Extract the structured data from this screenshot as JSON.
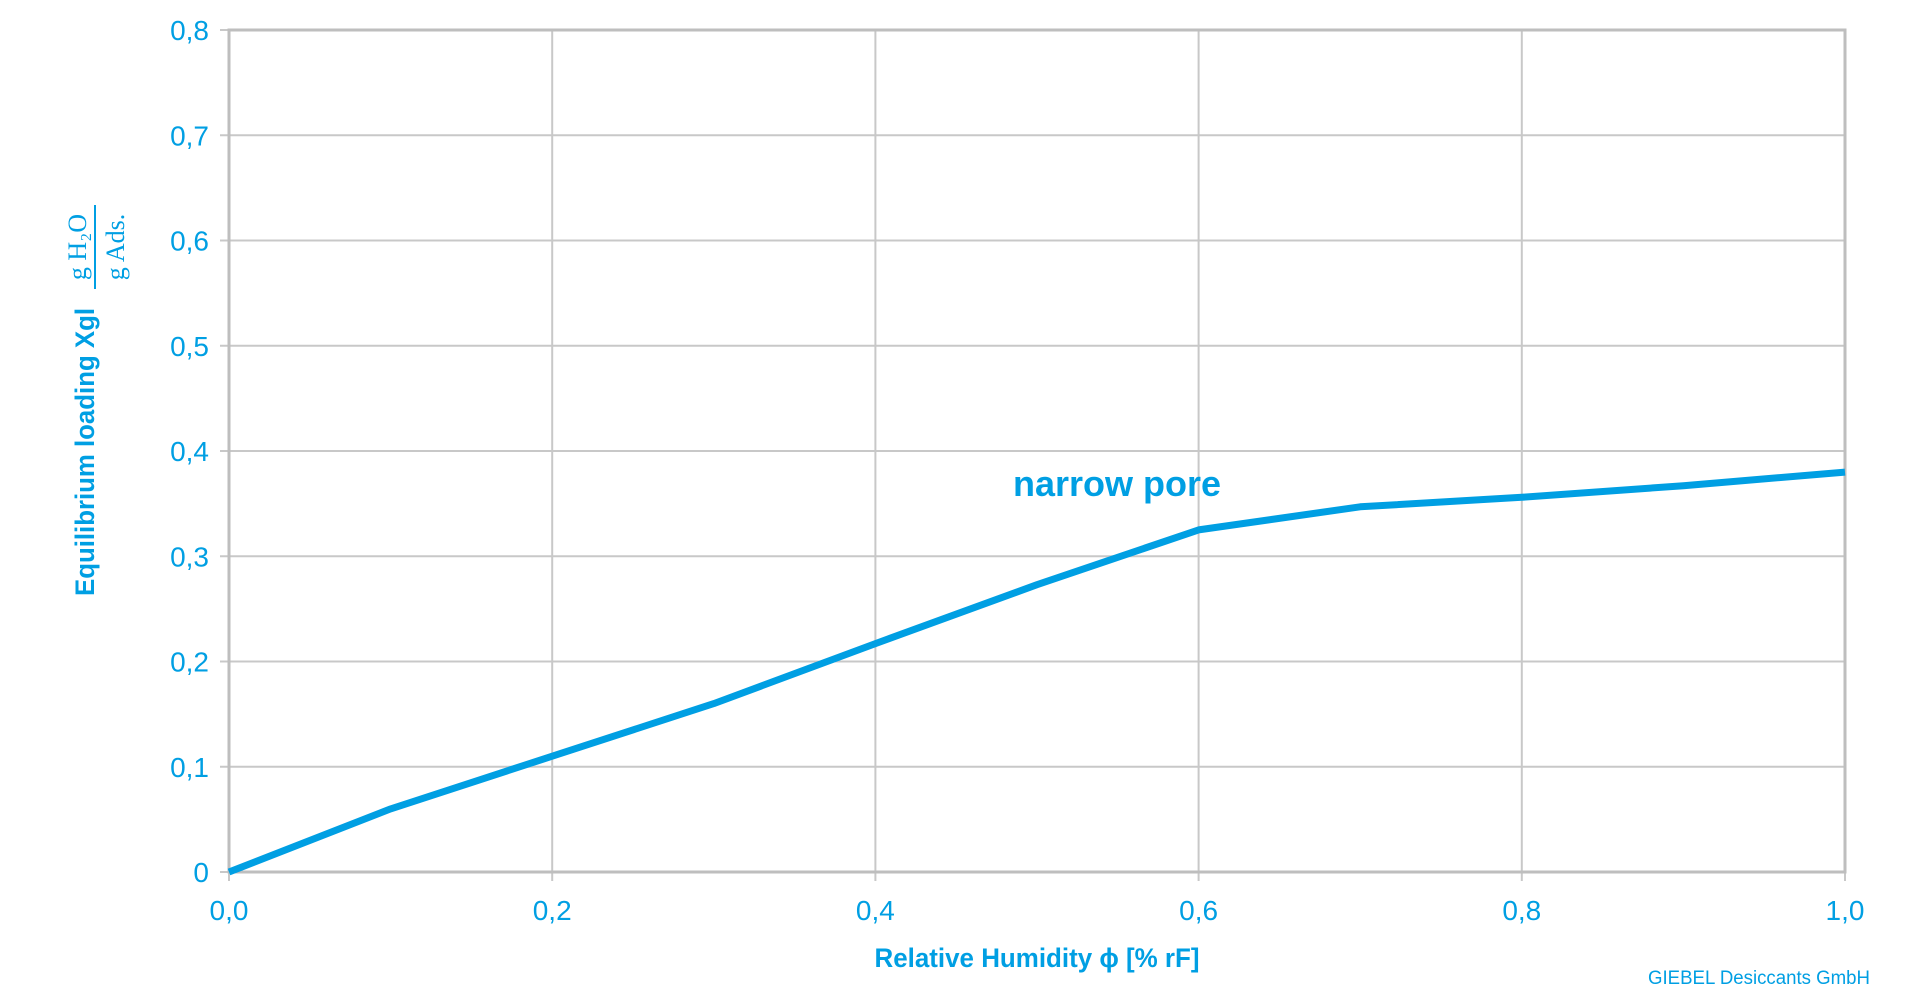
{
  "chart_data": {
    "type": "line",
    "title": "",
    "xlabel": "Relative Humidity ϕ [% rF]",
    "ylabel": "Equilibrium loading Xgl",
    "ylabel_unit": {
      "numerator": "g H₂O",
      "denominator": "g Ads."
    },
    "xlim": [
      0.0,
      1.0
    ],
    "ylim": [
      0,
      0.8
    ],
    "x_ticks": [
      "0,0",
      "0,2",
      "0,4",
      "0,6",
      "0,8",
      "1,0"
    ],
    "y_ticks": [
      "0",
      "0,1",
      "0,2",
      "0,3",
      "0,4",
      "0,5",
      "0,6",
      "0,7",
      "0,8"
    ],
    "grid": true,
    "legend": null,
    "series": [
      {
        "name": "narrow pore",
        "color": "#009FE3",
        "x": [
          0.0,
          0.1,
          0.2,
          0.3,
          0.4,
          0.5,
          0.6,
          0.7,
          0.8,
          0.9,
          1.0
        ],
        "y": [
          0.0,
          0.06,
          0.11,
          0.16,
          0.217,
          0.273,
          0.325,
          0.347,
          0.356,
          0.367,
          0.38
        ]
      }
    ],
    "annotations": [
      {
        "text": "narrow pore",
        "x": 0.48,
        "y": 0.37
      }
    ],
    "credit": "GIEBEL Desiccants GmbH"
  },
  "colors": {
    "accent": "#009FE3",
    "grid": "#C8C8C8",
    "axis": "#BEBEBE"
  }
}
